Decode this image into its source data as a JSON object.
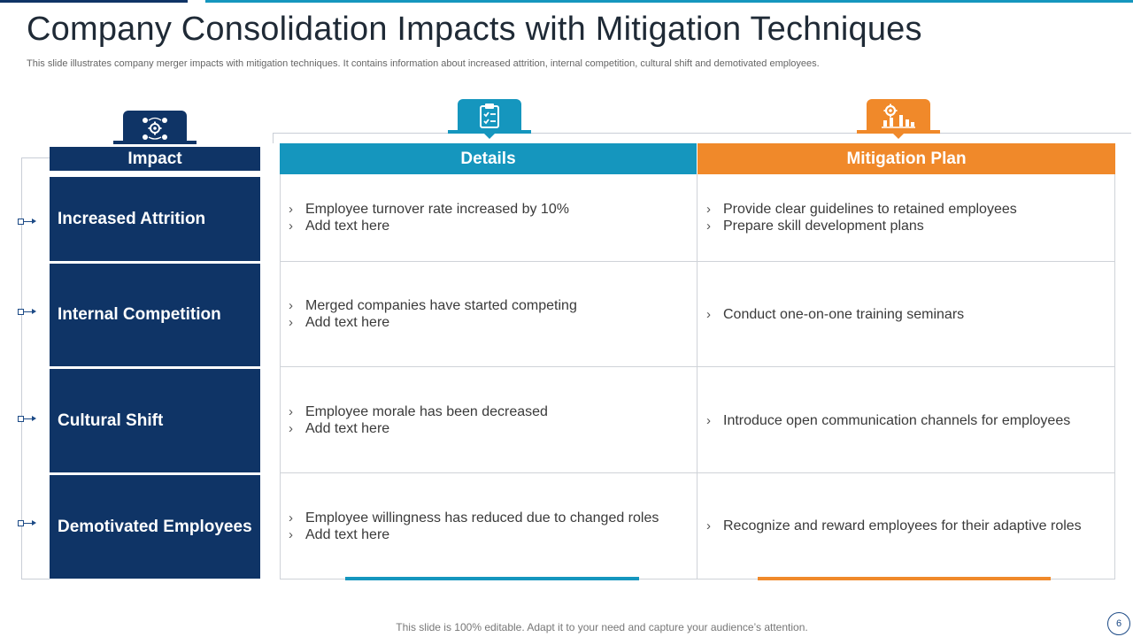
{
  "slide": {
    "title": "Company Consolidation Impacts with Mitigation Techniques",
    "subtitle": "This slide illustrates company merger impacts with mitigation techniques. It contains information about increased attrition, internal competition, cultural shift and demotivated employees.",
    "footer": "This slide is 100% editable. Adapt it to your need and capture your audience’s attention.",
    "page_number": "6"
  },
  "colors": {
    "navy": "#0f3466",
    "blue": "#1596be",
    "orange": "#f0892a"
  },
  "columns": {
    "impact": {
      "label": "Impact",
      "icon": "gear-network-icon"
    },
    "details": {
      "label": "Details",
      "icon": "clipboard-checklist-icon"
    },
    "mitigation": {
      "label": "Mitigation Plan",
      "icon": "gear-chart-icon"
    }
  },
  "rows": [
    {
      "impact": "Increased Attrition",
      "details": [
        "Employee turnover  rate increased by 10%",
        "Add text here"
      ],
      "mitigation": [
        "Provide clear guidelines to retained employees",
        "Prepare skill development  plans"
      ]
    },
    {
      "impact": "Internal Competition",
      "details": [
        "Merged companies have started competing",
        "Add text here"
      ],
      "mitigation": [
        "Conduct  one-on-one  training seminars"
      ]
    },
    {
      "impact": "Cultural Shift",
      "details": [
        "Employee morale has been decreased",
        "Add text here"
      ],
      "mitigation": [
        "Introduce  open communication channels  for employees"
      ]
    },
    {
      "impact": "Demotivated Employees",
      "details": [
        "Employee willingness  has reduced due to changed roles",
        "Add text here"
      ],
      "mitigation": [
        "Recognize and reward employees for their adaptive roles"
      ]
    }
  ]
}
